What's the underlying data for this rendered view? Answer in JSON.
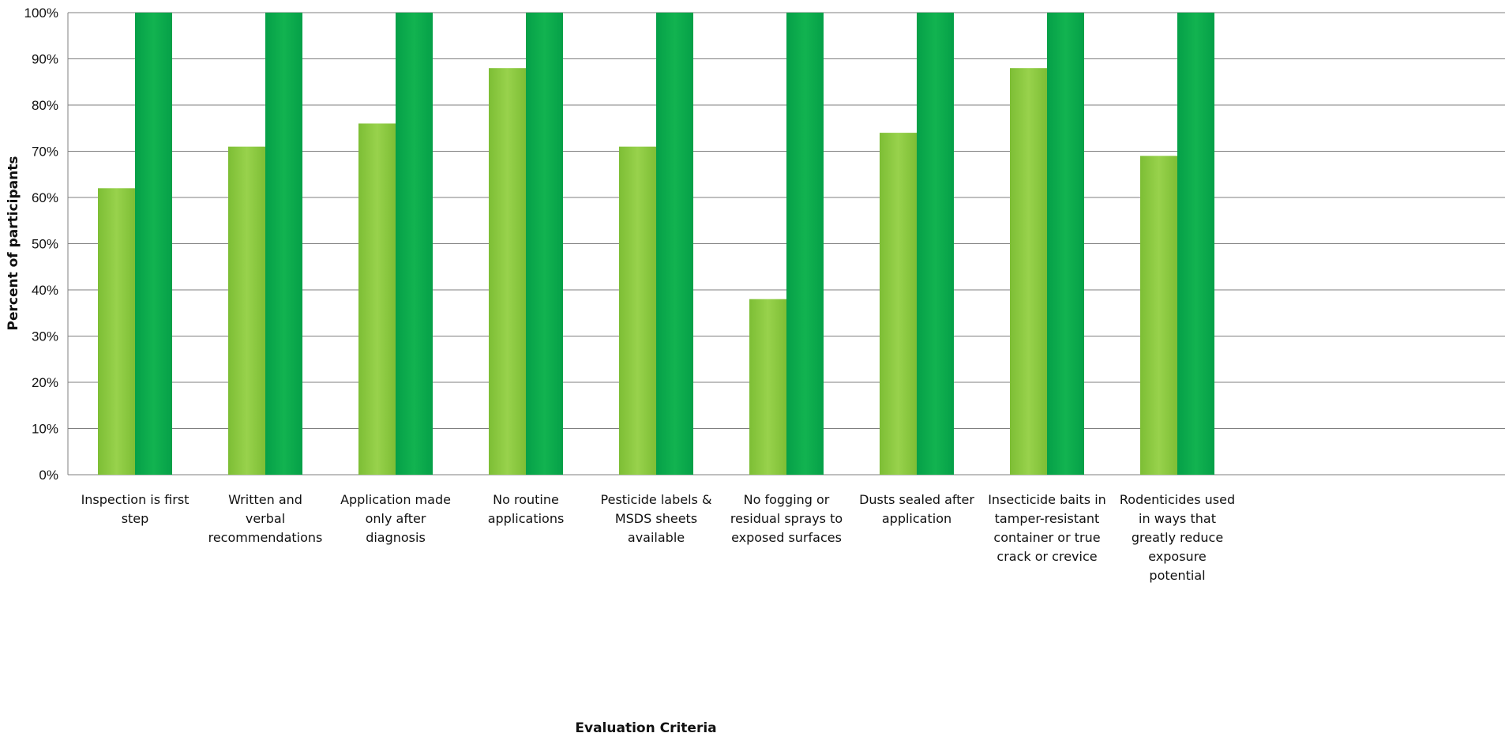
{
  "chart_data": {
    "type": "bar",
    "title": "",
    "xlabel": "Evaluation Criteria",
    "ylabel": "Percent of participants",
    "ylim": [
      0,
      100
    ],
    "yticks": [
      "0%",
      "10%",
      "20%",
      "30%",
      "40%",
      "50%",
      "60%",
      "70%",
      "80%",
      "90%",
      "100%"
    ],
    "grid": true,
    "legend": "none",
    "categories": [
      [
        "Inspection is first",
        "step"
      ],
      [
        "Written and",
        "verbal",
        "recommendations"
      ],
      [
        "Application made",
        "only after",
        "diagnosis"
      ],
      [
        "No routine",
        "applications"
      ],
      [
        "Pesticide labels &",
        "MSDS sheets",
        "available"
      ],
      [
        "No fogging or",
        "residual sprays to",
        "exposed surfaces"
      ],
      [
        "Dusts sealed after",
        "application"
      ],
      [
        "Insecticide baits in",
        "tamper-resistant",
        "container or true",
        "crack or crevice"
      ],
      [
        "Rodenticides used",
        "in ways that",
        "greatly reduce",
        "exposure",
        "potential"
      ]
    ],
    "series": [
      {
        "color": "#8cc63f",
        "values": [
          62,
          71,
          76,
          88,
          71,
          38,
          74,
          88,
          69
        ]
      },
      {
        "color": "#0aa84a",
        "values": [
          100,
          100,
          100,
          100,
          100,
          100,
          100,
          100,
          100
        ]
      }
    ]
  }
}
